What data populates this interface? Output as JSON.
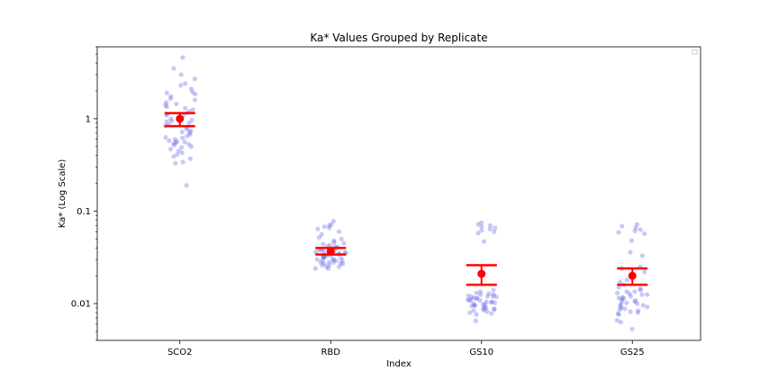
{
  "chart_data": {
    "type": "scatter",
    "title": "Ka* Values Grouped by Replicate",
    "xlabel": "Index",
    "ylabel": "Ka* (Log Scale)",
    "yscale": "log",
    "ylim": [
      0.004,
      6.0
    ],
    "yticks": [
      {
        "value": 0.01,
        "label": "0.01"
      },
      {
        "value": 0.1,
        "label": "0.1"
      },
      {
        "value": 1,
        "label": "1"
      }
    ],
    "categories": [
      "SCO2",
      "RBD",
      "GS10",
      "GS25"
    ],
    "legend": "top-right (empty)",
    "grid": false,
    "colors": {
      "points": "#6464e6",
      "summary": "#ff0000"
    },
    "groups": [
      {
        "name": "SCO2",
        "mean": 1.0,
        "ci": [
          0.83,
          1.15
        ],
        "points": [
          4.6,
          3.5,
          3.0,
          2.7,
          2.4,
          2.3,
          2.1,
          1.95,
          1.9,
          1.85,
          1.75,
          1.65,
          1.6,
          1.5,
          1.45,
          1.4,
          1.35,
          1.3,
          1.25,
          1.2,
          1.15,
          1.1,
          1.08,
          1.05,
          1.0,
          0.97,
          0.93,
          0.9,
          0.87,
          0.84,
          0.8,
          0.77,
          0.74,
          0.71,
          0.68,
          0.65,
          0.63,
          0.6,
          0.58,
          0.56,
          0.55,
          0.54,
          0.53,
          0.52,
          0.5,
          0.49,
          0.47,
          0.45,
          0.43,
          0.41,
          0.39,
          0.37,
          0.34,
          0.33,
          0.19,
          0.62,
          0.57,
          0.72,
          0.95,
          1.12
        ]
      },
      {
        "name": "RBD",
        "mean": 0.037,
        "ci": [
          0.034,
          0.04
        ],
        "points": [
          0.078,
          0.072,
          0.07,
          0.068,
          0.066,
          0.064,
          0.06,
          0.056,
          0.052,
          0.05,
          0.048,
          0.046,
          0.045,
          0.044,
          0.043,
          0.042,
          0.041,
          0.04,
          0.039,
          0.038,
          0.037,
          0.036,
          0.036,
          0.035,
          0.034,
          0.034,
          0.033,
          0.033,
          0.032,
          0.032,
          0.031,
          0.031,
          0.03,
          0.03,
          0.029,
          0.029,
          0.028,
          0.028,
          0.027,
          0.027,
          0.026,
          0.026,
          0.025,
          0.025,
          0.024,
          0.024,
          0.038,
          0.035,
          0.033,
          0.03,
          0.028,
          0.027,
          0.041,
          0.036,
          0.032,
          0.029
        ]
      },
      {
        "name": "GS10",
        "mean": 0.021,
        "ci": [
          0.016,
          0.026
        ],
        "points": [
          0.075,
          0.072,
          0.07,
          0.068,
          0.066,
          0.064,
          0.062,
          0.06,
          0.058,
          0.047,
          0.014,
          0.0135,
          0.013,
          0.0128,
          0.0125,
          0.012,
          0.0118,
          0.0115,
          0.0113,
          0.011,
          0.0108,
          0.0105,
          0.0103,
          0.01,
          0.0098,
          0.0096,
          0.0094,
          0.0092,
          0.009,
          0.0088,
          0.0086,
          0.0084,
          0.0082,
          0.008,
          0.0078,
          0.0076,
          0.0065,
          0.012,
          0.011,
          0.0105,
          0.0115,
          0.0095,
          0.0098,
          0.0125,
          0.0088,
          0.0102,
          0.0108,
          0.0118,
          0.0122,
          0.0085
        ]
      },
      {
        "name": "GS25",
        "mean": 0.02,
        "ci": [
          0.016,
          0.024
        ],
        "points": [
          0.072,
          0.069,
          0.066,
          0.063,
          0.061,
          0.059,
          0.057,
          0.048,
          0.036,
          0.033,
          0.025,
          0.024,
          0.022,
          0.018,
          0.017,
          0.016,
          0.015,
          0.0145,
          0.014,
          0.0135,
          0.013,
          0.0128,
          0.0125,
          0.012,
          0.0117,
          0.0114,
          0.0111,
          0.0108,
          0.0105,
          0.0102,
          0.01,
          0.0098,
          0.0096,
          0.0094,
          0.0092,
          0.009,
          0.0088,
          0.0086,
          0.0084,
          0.0082,
          0.008,
          0.0078,
          0.0076,
          0.0066,
          0.0063,
          0.0053,
          0.0115,
          0.0125,
          0.0135,
          0.0105
        ]
      }
    ]
  }
}
